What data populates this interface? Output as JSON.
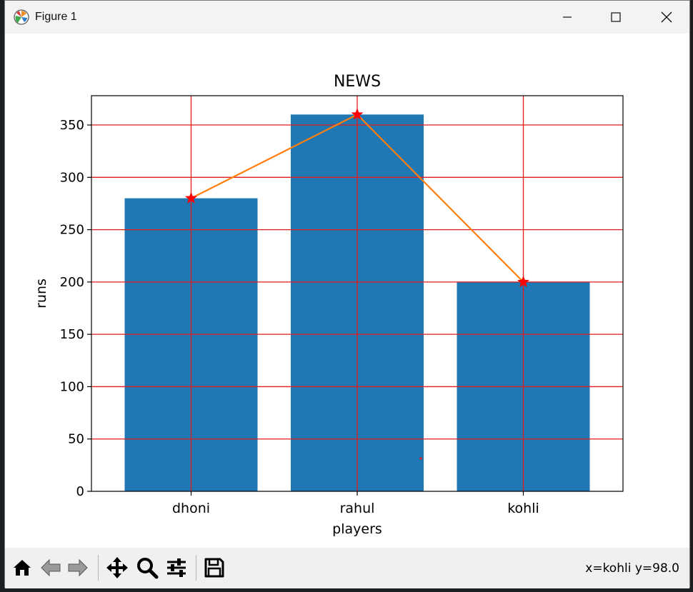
{
  "window": {
    "title": "Figure 1"
  },
  "status": {
    "coords": "x=kohli y=98.0"
  },
  "toolbar": {
    "tools": [
      "home-icon",
      "back-icon",
      "forward-icon",
      "pan-icon",
      "zoom-icon",
      "configure-subplots-icon",
      "save-icon"
    ]
  },
  "colors": {
    "bar": "#1f77b4",
    "line": "#ff7f0e",
    "grid": "#e51c1c",
    "marker": "#ff0000"
  },
  "chart_data": {
    "type": "bar",
    "title": "NEWS",
    "xlabel": "players",
    "ylabel": "runs",
    "categories": [
      "dhoni",
      "rahul",
      "kohli"
    ],
    "values": [
      280,
      360,
      200
    ],
    "line_overlay": {
      "values": [
        280,
        360,
        200
      ],
      "marker": "star"
    },
    "ylim": [
      0,
      378
    ],
    "yticks": [
      0,
      50,
      100,
      150,
      200,
      250,
      300,
      350
    ],
    "grid": true,
    "legend": "none"
  }
}
